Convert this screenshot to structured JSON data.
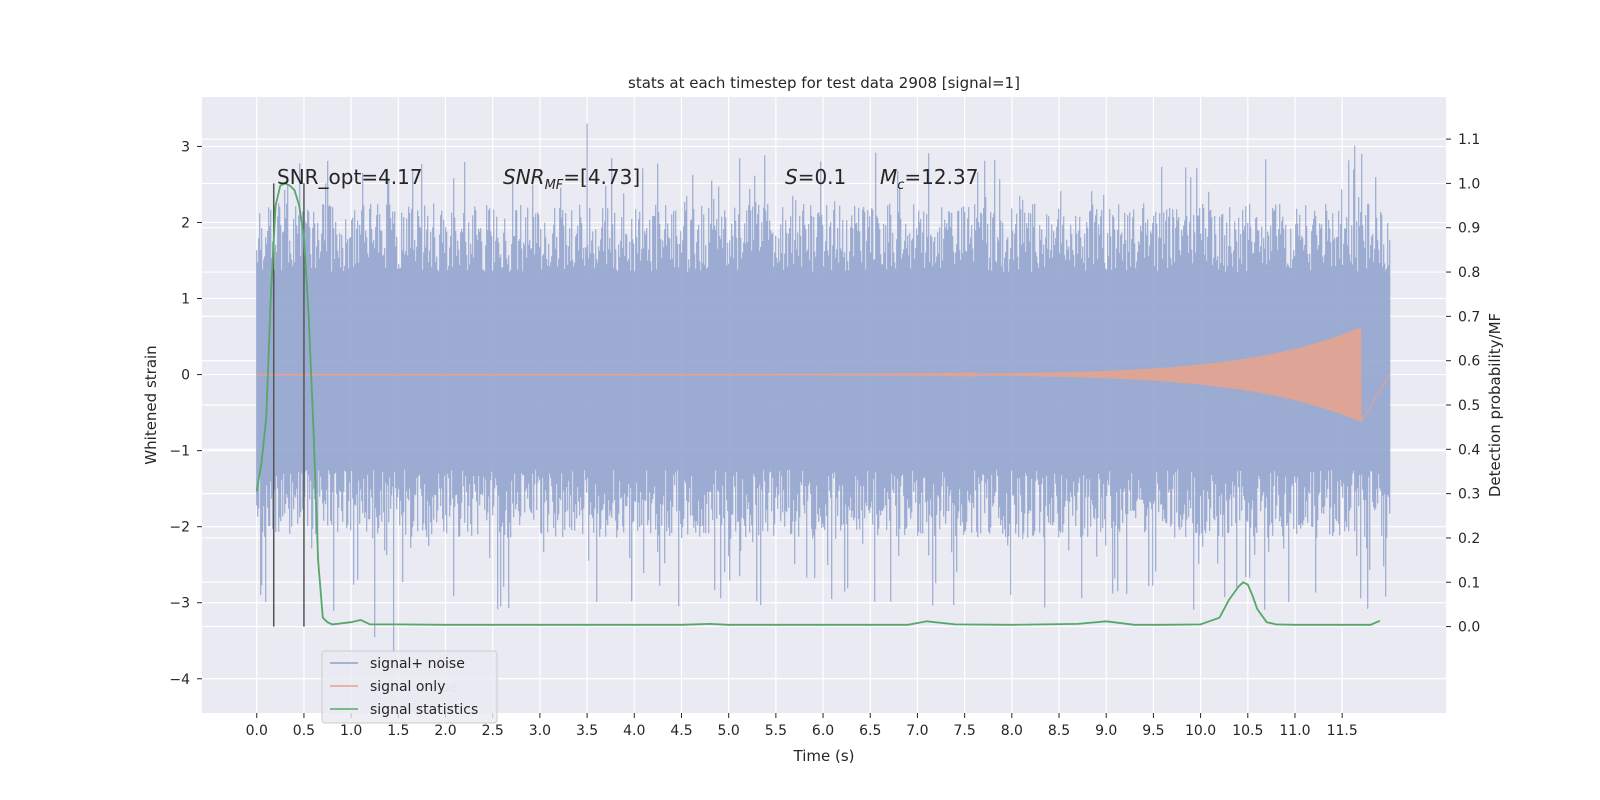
{
  "chart_data": {
    "type": "line",
    "title": "stats at each timestep for test data 2908 [signal=1]",
    "xlabel": "Time (s)",
    "ylabel": "Whitened strain",
    "ylabel_right": "Detection probability/MF",
    "xlim": [
      -0.58,
      12.6
    ],
    "ylim": [
      -4.45,
      3.65
    ],
    "ylim_right": [
      -0.195,
      1.195
    ],
    "x_ticks": [
      "0.0",
      "0.5",
      "1.0",
      "1.5",
      "2.0",
      "2.5",
      "3.0",
      "3.5",
      "4.0",
      "4.5",
      "5.0",
      "5.5",
      "6.0",
      "6.5",
      "7.0",
      "7.5",
      "8.0",
      "8.5",
      "9.0",
      "9.5",
      "10.0",
      "10.5",
      "11.0",
      "11.5"
    ],
    "y_ticks": [
      "3",
      "2",
      "1",
      "0",
      "−1",
      "−2",
      "−3",
      "−4"
    ],
    "y_ticks_right": [
      "1.1",
      "1.0",
      "0.9",
      "0.8",
      "0.7",
      "0.6",
      "0.5",
      "0.4",
      "0.3",
      "0.2",
      "0.1",
      "0.0"
    ],
    "grid": true,
    "legend_position": "lower-left",
    "annotations": {
      "snr_opt": "SNR_opt=4.17",
      "snr_mf_base": "SNR",
      "snr_mf_sub": "MF",
      "snr_mf_value": "=[4.73]",
      "s_symbol": "S",
      "s_value": "=0.1",
      "mc_base": "M",
      "mc_sub": "c",
      "mc_value": "=12.37"
    },
    "vertical_markers": [
      0.18,
      0.5
    ],
    "series": [
      {
        "name": "signal+ noise",
        "color": "#8da0cb",
        "axis": "left",
        "x_range": [
          0.0,
          12.0
        ],
        "envelope_upper": 1.35,
        "envelope_lower": -1.25,
        "peak_max": 3.3,
        "peak_min": -3.65
      },
      {
        "name": "signal only",
        "color": "#e5a38e",
        "axis": "left",
        "x_range": [
          0.0,
          11.7
        ],
        "peak_amplitude": 0.62
      },
      {
        "name": "signal statistics",
        "color": "#55a868",
        "axis": "right",
        "x": [
          0.0,
          0.05,
          0.1,
          0.15,
          0.2,
          0.25,
          0.3,
          0.35,
          0.4,
          0.45,
          0.5,
          0.55,
          0.6,
          0.65,
          0.7,
          0.75,
          0.8,
          1.0,
          1.1,
          1.2,
          1.5,
          2.0,
          3.0,
          4.0,
          4.5,
          4.8,
          5.0,
          5.5,
          6.0,
          6.5,
          6.9,
          7.1,
          7.4,
          8.0,
          8.7,
          9.0,
          9.3,
          9.6,
          10.0,
          10.2,
          10.3,
          10.4,
          10.45,
          10.5,
          10.55,
          10.6,
          10.7,
          10.8,
          11.0,
          11.5,
          11.8,
          11.9
        ],
        "y": [
          0.305,
          0.37,
          0.47,
          0.75,
          0.95,
          0.995,
          1.0,
          0.995,
          0.985,
          0.95,
          0.88,
          0.7,
          0.45,
          0.15,
          0.02,
          0.01,
          0.005,
          0.01,
          0.015,
          0.005,
          0.005,
          0.004,
          0.004,
          0.004,
          0.004,
          0.006,
          0.004,
          0.004,
          0.004,
          0.004,
          0.004,
          0.012,
          0.005,
          0.004,
          0.006,
          0.012,
          0.004,
          0.004,
          0.005,
          0.02,
          0.06,
          0.09,
          0.1,
          0.095,
          0.07,
          0.04,
          0.01,
          0.005,
          0.004,
          0.004,
          0.004,
          0.013
        ]
      }
    ],
    "legend_ghost_text": "noise"
  }
}
